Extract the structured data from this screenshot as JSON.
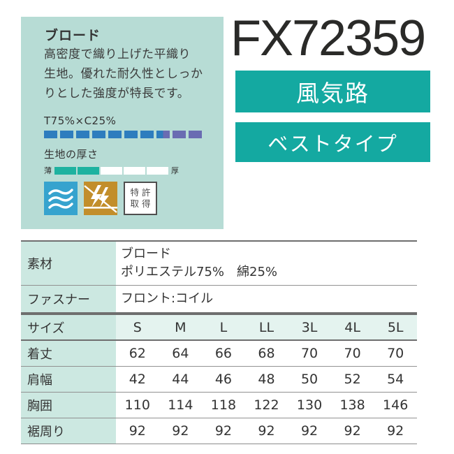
{
  "product": {
    "code": "FX72359",
    "series_banner": "風気路",
    "type_banner": "ベストタイプ"
  },
  "fabric_box": {
    "title": "ブロード",
    "description_lines": [
      "高密度で織り上げた平織り",
      "生地。優れた耐久性としっか",
      "りとした強度が特長です。"
    ],
    "composition": {
      "label": "T75%×C25%",
      "segments_total": 10,
      "segments_primary": 7.5,
      "primary_color": "#2e7dbe",
      "secondary_color": "#6a6cb2"
    },
    "thickness": {
      "label": "生地の厚さ",
      "min_label": "薄",
      "max_label": "厚",
      "segments_total": 5,
      "segments_filled": 2,
      "filled_color": "#1eb2a0"
    },
    "icons": {
      "airflow": {
        "name": "airflow-icon",
        "bg": "#36a3ce"
      },
      "anti_static": {
        "name": "anti-static-icon",
        "bg": "#c28e2b"
      },
      "patent": {
        "line1": "特許",
        "line2": "取得"
      }
    }
  },
  "spec_table": {
    "rows": [
      {
        "label": "素材",
        "value_lines": [
          "ブロード",
          "ポリエステル75%　綿25%"
        ]
      },
      {
        "label": "ファスナー",
        "value_lines": [
          "フロント:コイル"
        ]
      }
    ]
  },
  "size_table": {
    "header_label": "サイズ",
    "sizes": [
      "S",
      "M",
      "L",
      "LL",
      "3L",
      "4L",
      "5L"
    ],
    "rows": [
      {
        "label": "着丈",
        "values": [
          "62",
          "64",
          "66",
          "68",
          "70",
          "70",
          "70"
        ]
      },
      {
        "label": "肩幅",
        "values": [
          "42",
          "44",
          "46",
          "48",
          "50",
          "52",
          "54"
        ]
      },
      {
        "label": "胸囲",
        "values": [
          "110",
          "114",
          "118",
          "122",
          "130",
          "138",
          "146"
        ]
      },
      {
        "label": "裾周り",
        "values": [
          "92",
          "92",
          "92",
          "92",
          "92",
          "92",
          "92"
        ]
      }
    ]
  },
  "colors": {
    "accent_teal": "#14a9a1",
    "panel_mint": "#b7dcd5",
    "cell_mint": "#cce8e1",
    "header_mint_light": "#e4f3ef"
  }
}
